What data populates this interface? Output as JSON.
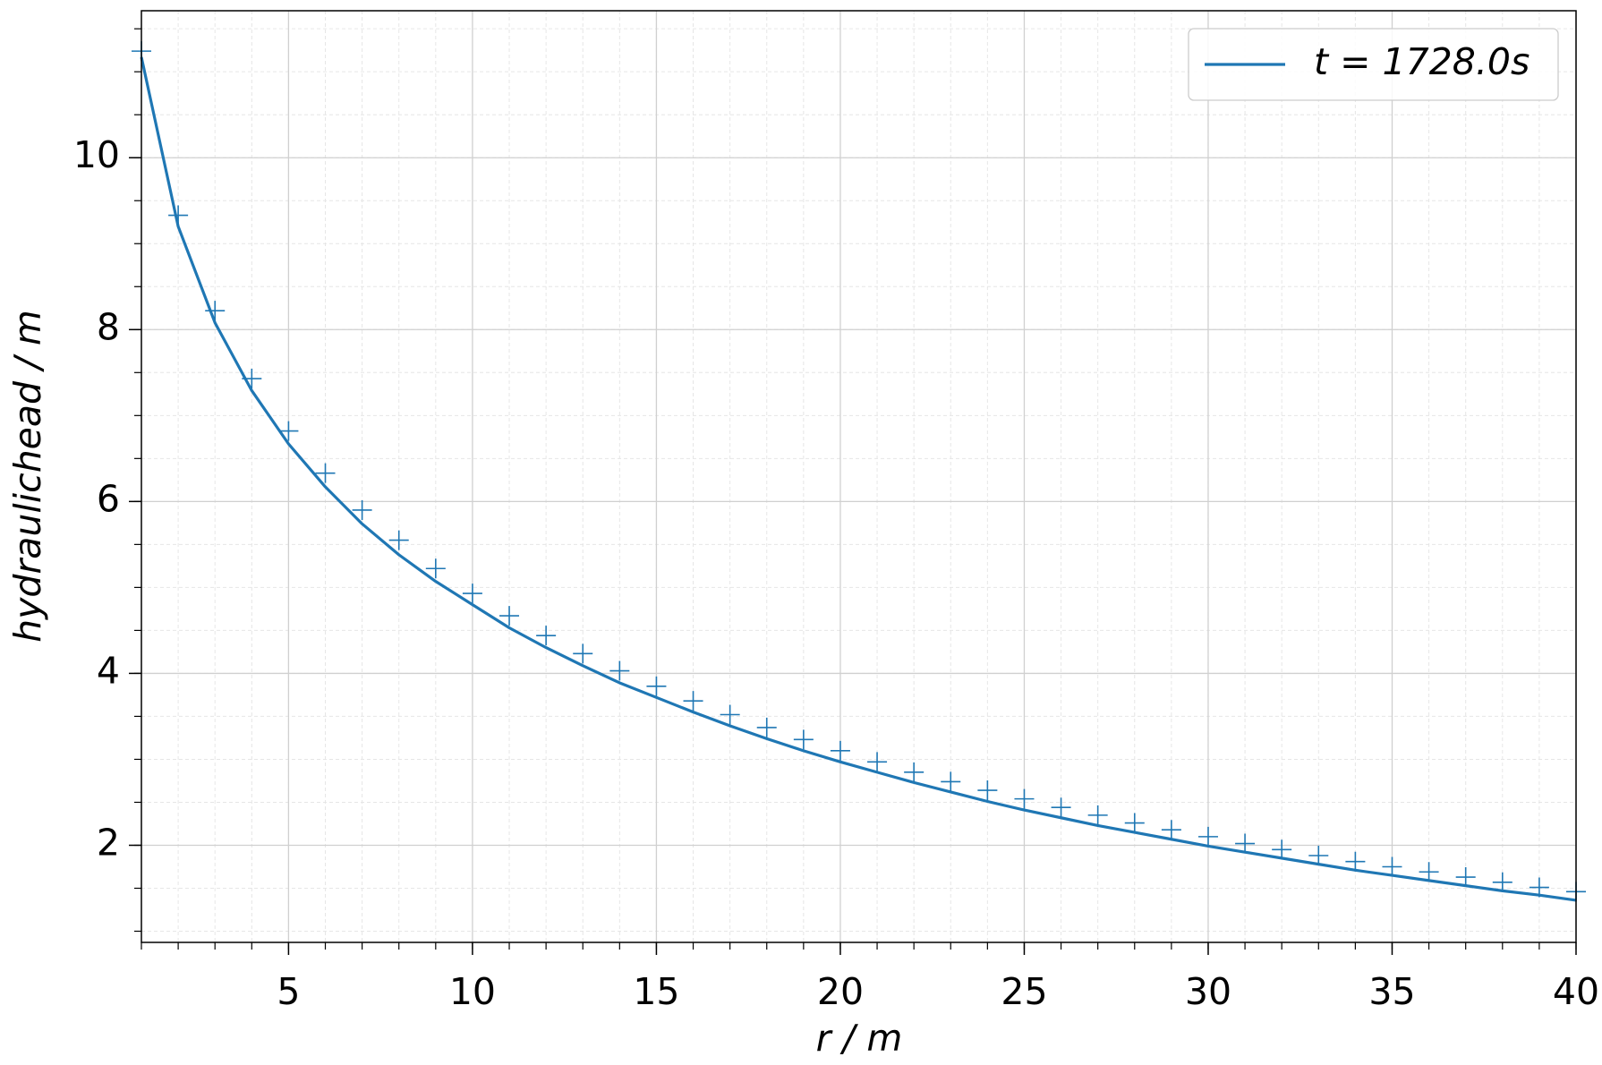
{
  "chart_data": {
    "type": "line",
    "xlabel": "r / m",
    "ylabel": "hydraulichead / m",
    "x": [
      1,
      2,
      3,
      4,
      5,
      6,
      7,
      8,
      9,
      10,
      11,
      12,
      13,
      14,
      15,
      16,
      17,
      18,
      19,
      20,
      21,
      22,
      23,
      24,
      25,
      26,
      27,
      28,
      29,
      30,
      31,
      32,
      33,
      34,
      35,
      36,
      37,
      38,
      39,
      40
    ],
    "series": [
      {
        "name": "t = 1728.0s",
        "color": "#1f77b4",
        "style": "line",
        "values": [
          11.17,
          9.2,
          8.08,
          7.29,
          6.67,
          6.17,
          5.74,
          5.38,
          5.07,
          4.8,
          4.53,
          4.3,
          4.09,
          3.89,
          3.72,
          3.55,
          3.39,
          3.24,
          3.1,
          2.97,
          2.85,
          2.73,
          2.62,
          2.51,
          2.41,
          2.32,
          2.23,
          2.15,
          2.07,
          1.99,
          1.92,
          1.85,
          1.78,
          1.71,
          1.65,
          1.59,
          1.53,
          1.47,
          1.42,
          1.36
        ]
      },
      {
        "color": "#1f77b4",
        "style": "plus",
        "values": [
          11.24,
          9.33,
          8.22,
          7.43,
          6.82,
          6.33,
          5.9,
          5.55,
          5.22,
          4.93,
          4.67,
          4.44,
          4.23,
          4.03,
          3.85,
          3.68,
          3.52,
          3.37,
          3.23,
          3.1,
          2.97,
          2.85,
          2.74,
          2.64,
          2.54,
          2.44,
          2.35,
          2.26,
          2.18,
          2.1,
          2.02,
          1.95,
          1.88,
          1.81,
          1.75,
          1.69,
          1.63,
          1.57,
          1.51,
          1.46
        ]
      }
    ],
    "xlim": [
      1,
      40
    ],
    "xticks": [
      5,
      10,
      15,
      20,
      25,
      30,
      35,
      40
    ],
    "ylim": [
      0.87,
      11.71
    ],
    "yticks": [
      2,
      4,
      6,
      8,
      10
    ],
    "grid": true,
    "minor_grid": true,
    "legend": "upper right"
  }
}
